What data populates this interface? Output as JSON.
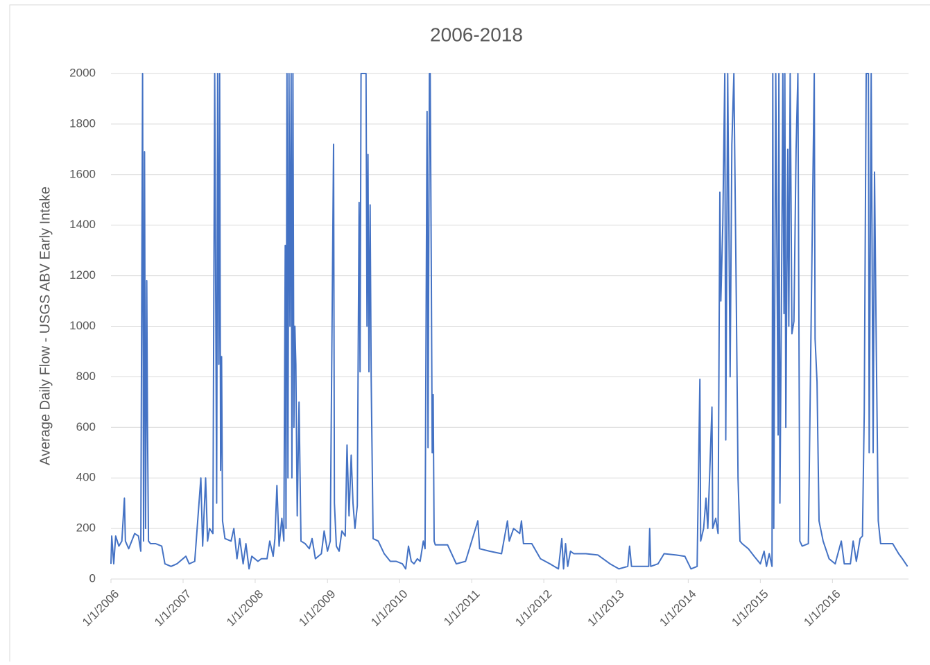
{
  "chart_data": {
    "type": "line",
    "title": "2006-2018",
    "y_label": "Average Daily Flow - USGS ABV Early Intake",
    "color": "#4472c4",
    "grid": true,
    "ylim": [
      0,
      2000
    ],
    "yticks": [
      0,
      200,
      400,
      600,
      800,
      1000,
      1200,
      1400,
      1600,
      1800,
      2000
    ],
    "xlim": [
      "1/1/2006",
      "1/20/2017"
    ],
    "xticks": [
      "1/1/2006",
      "1/1/2007",
      "1/1/2008",
      "1/1/2009",
      "1/1/2010",
      "1/1/2011",
      "1/1/2012",
      "1/1/2013",
      "1/1/2014",
      "1/1/2015",
      "1/1/2016"
    ],
    "x": [
      "1/1/2006",
      "1/5/2006",
      "1/15/2006",
      "1/25/2006",
      "2/10/2006",
      "2/25/2006",
      "3/10/2006",
      "3/15/2006",
      "4/1/2006",
      "5/1/2006",
      "5/20/2006",
      "6/1/2006",
      "6/10/2006",
      "6/15/2006",
      "6/20/2006",
      "6/25/2006",
      "7/1/2006",
      "7/5/2006",
      "7/10/2006",
      "7/20/2006",
      "8/15/2006",
      "9/15/2006",
      "10/1/2006",
      "11/1/2006",
      "12/1/2006",
      "1/15/2007",
      "2/1/2007",
      "3/1/2007",
      "4/1/2007",
      "4/10/2007",
      "4/25/2007",
      "5/5/2007",
      "5/15/2007",
      "6/1/2007",
      "6/10/2007",
      "6/20/2007",
      "6/25/2007",
      "7/1/2007",
      "7/5/2007",
      "7/10/2007",
      "7/15/2007",
      "7/20/2007",
      "8/1/2007",
      "9/1/2007",
      "9/15/2007",
      "10/1/2007",
      "10/15/2007",
      "11/1/2007",
      "11/15/2007",
      "12/1/2007",
      "12/15/2007",
      "1/15/2008",
      "2/1/2008",
      "3/1/2008",
      "3/15/2008",
      "4/1/2008",
      "4/10/2008",
      "4/20/2008",
      "5/1/2008",
      "5/15/2008",
      "5/25/2008",
      "6/1/2008",
      "6/5/2008",
      "6/10/2008",
      "6/15/2008",
      "6/20/2008",
      "6/25/2008",
      "7/1/2008",
      "7/5/2008",
      "7/10/2008",
      "7/15/2008",
      "7/20/2008",
      "7/25/2008",
      "8/1/2008",
      "8/10/2008",
      "8/20/2008",
      "9/10/2008",
      "10/1/2008",
      "10/15/2008",
      "11/1/2008",
      "12/1/2008",
      "12/15/2008",
      "1/1/2009",
      "1/15/2009",
      "2/1/2009",
      "2/5/2009",
      "2/15/2009",
      "3/1/2009",
      "3/15/2009",
      "4/1/2009",
      "4/10/2009",
      "4/20/2009",
      "5/1/2009",
      "5/10/2009",
      "5/20/2009",
      "6/1/2009",
      "6/10/2009",
      "6/15/2009",
      "6/20/2009",
      "7/15/2009",
      "7/20/2009",
      "7/25/2009",
      "7/30/2009",
      "8/5/2009",
      "8/10/2009",
      "8/20/2009",
      "9/15/2009",
      "10/15/2009",
      "11/15/2009",
      "12/15/2009",
      "1/15/2010",
      "2/1/2010",
      "2/15/2010",
      "3/1/2010",
      "3/15/2010",
      "4/1/2010",
      "4/15/2010",
      "5/1/2010",
      "5/10/2010",
      "5/20/2010",
      "5/25/2010",
      "6/1/2010",
      "6/5/2010",
      "6/10/2010",
      "6/15/2010",
      "6/20/2010",
      "6/25/2010",
      "7/1/2010",
      "9/1/2010",
      "10/15/2010",
      "12/1/2010",
      "2/1/2011",
      "2/10/2011",
      "4/1/2011",
      "6/1/2011",
      "7/1/2011",
      "7/10/2011",
      "8/1/2011",
      "9/1/2011",
      "9/10/2011",
      "9/20/2011",
      "11/1/2011",
      "12/15/2011",
      "2/1/2012",
      "3/15/2012",
      "4/1/2012",
      "4/10/2012",
      "4/20/2012",
      "5/1/2012",
      "5/15/2012",
      "6/1/2012",
      "8/1/2012",
      "10/1/2012",
      "12/1/2012",
      "1/15/2013",
      "3/1/2013",
      "3/10/2013",
      "3/20/2013",
      "5/1/2013",
      "6/15/2013",
      "6/20/2013",
      "6/25/2013",
      "8/1/2013",
      "9/1/2013",
      "11/1/2013",
      "12/15/2013",
      "1/15/2014",
      "2/15/2014",
      "3/1/2014",
      "3/5/2014",
      "3/20/2014",
      "4/1/2014",
      "4/10/2014",
      "5/1/2014",
      "5/5/2014",
      "5/20/2014",
      "6/1/2014",
      "6/10/2014",
      "6/15/2014",
      "6/25/2014",
      "7/5/2014",
      "7/10/2014",
      "7/20/2014",
      "8/1/2014",
      "8/10/2014",
      "8/20/2014",
      "9/1/2014",
      "9/10/2014",
      "9/20/2014",
      "10/1/2014",
      "11/1/2014",
      "12/1/2014",
      "1/1/2015",
      "1/20/2015",
      "2/1/2015",
      "2/15/2015",
      "3/1/2015",
      "3/5/2015",
      "3/10/2015",
      "3/20/2015",
      "4/1/2015",
      "4/5/2015",
      "4/10/2015",
      "4/20/2015",
      "4/25/2015",
      "5/1/2015",
      "5/5/2015",
      "5/10/2015",
      "5/20/2015",
      "5/25/2015",
      "6/1/2015",
      "6/10/2015",
      "6/20/2015",
      "7/1/2015",
      "7/10/2015",
      "7/20/2015",
      "8/1/2015",
      "9/1/2015",
      "10/1/2015",
      "10/5/2015",
      "10/15/2015",
      "10/25/2015",
      "11/15/2015",
      "12/15/2015",
      "1/15/2016",
      "2/15/2016",
      "3/1/2016",
      "4/1/2016",
      "4/15/2016",
      "5/1/2016",
      "5/20/2016",
      "6/1/2016",
      "6/10/2016",
      "6/20/2016",
      "7/1/2016",
      "7/5/2016",
      "7/15/2016",
      "7/25/2016",
      "8/1/2016",
      "8/10/2016",
      "8/20/2016",
      "9/1/2016",
      "11/1/2016",
      "12/1/2016",
      "12/20/2016",
      "1/15/2017"
    ],
    "values": [
      60,
      170,
      60,
      170,
      130,
      150,
      320,
      150,
      120,
      180,
      170,
      110,
      2000,
      150,
      1690,
      200,
      1180,
      600,
      150,
      140,
      140,
      130,
      60,
      50,
      60,
      90,
      60,
      70,
      400,
      130,
      400,
      150,
      200,
      180,
      2000,
      300,
      2000,
      850,
      2000,
      430,
      880,
      230,
      160,
      150,
      200,
      80,
      160,
      60,
      140,
      40,
      90,
      70,
      80,
      80,
      150,
      90,
      160,
      370,
      130,
      240,
      150,
      1320,
      200,
      2000,
      400,
      2000,
      1000,
      2000,
      400,
      2000,
      600,
      1000,
      850,
      250,
      700,
      150,
      140,
      120,
      160,
      80,
      100,
      190,
      110,
      150,
      1720,
      300,
      130,
      110,
      190,
      170,
      530,
      250,
      490,
      300,
      200,
      290,
      1490,
      820,
      2000,
      2000,
      1000,
      1680,
      820,
      1480,
      800,
      160,
      150,
      100,
      70,
      70,
      60,
      40,
      130,
      70,
      60,
      80,
      70,
      150,
      120,
      1850,
      520,
      2000,
      2000,
      1280,
      500,
      730,
      150,
      135,
      135,
      60,
      70,
      230,
      120,
      110,
      100,
      230,
      150,
      200,
      180,
      230,
      140,
      140,
      80,
      60,
      40,
      160,
      40,
      140,
      50,
      110,
      100,
      100,
      95,
      60,
      40,
      50,
      130,
      50,
      50,
      50,
      200,
      50,
      60,
      100,
      95,
      90,
      40,
      50,
      790,
      150,
      200,
      320,
      200,
      680,
      200,
      240,
      180,
      1530,
      1100,
      1400,
      2000,
      550,
      2000,
      800,
      1720,
      2000,
      1130,
      400,
      150,
      140,
      120,
      90,
      60,
      110,
      50,
      100,
      50,
      2000,
      200,
      2000,
      570,
      2000,
      300,
      1330,
      2000,
      1050,
      2000,
      600,
      1700,
      1000,
      2000,
      970,
      1020,
      1700,
      2000,
      150,
      130,
      140,
      2000,
      950,
      780,
      230,
      150,
      80,
      60,
      150,
      60,
      60,
      150,
      70,
      160,
      170,
      660,
      2000,
      2000,
      500,
      2000,
      500,
      1610,
      900,
      230,
      140,
      140,
      100,
      80,
      50
    ]
  }
}
